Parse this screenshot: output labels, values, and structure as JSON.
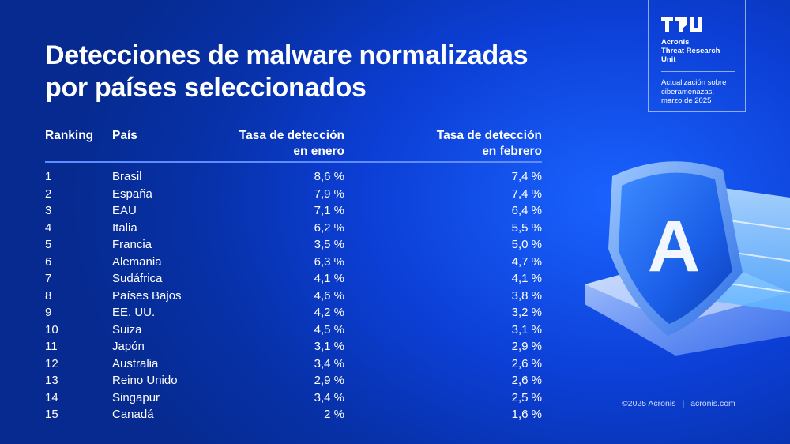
{
  "title_line1": "Detecciones de malware normalizadas",
  "title_line2": "por países seleccionados",
  "table": {
    "headers": {
      "rank": "Ranking",
      "country": "País",
      "jan_line1": "Tasa de detección",
      "jan_line2": "en enero",
      "feb_line1": "Tasa de detección",
      "feb_line2": "en febrero"
    },
    "rows": [
      {
        "rank": "1",
        "country": "Brasil",
        "jan": "8,6 %",
        "feb": "7,4 %"
      },
      {
        "rank": "2",
        "country": "España",
        "jan": "7,9 %",
        "feb": "7,4 %"
      },
      {
        "rank": "3",
        "country": "EAU",
        "jan": "7,1 %",
        "feb": "6,4 %"
      },
      {
        "rank": "4",
        "country": "Italia",
        "jan": "6,2 %",
        "feb": "5,5 %"
      },
      {
        "rank": "5",
        "country": "Francia",
        "jan": "3,5 %",
        "feb": "5,0 %"
      },
      {
        "rank": "6",
        "country": "Alemania",
        "jan": "6,3 %",
        "feb": "4,7 %"
      },
      {
        "rank": "7",
        "country": "Sudáfrica",
        "jan": "4,1 %",
        "feb": "4,1 %"
      },
      {
        "rank": "8",
        "country": "Países Bajos",
        "jan": "4,6 %",
        "feb": "3,8 %"
      },
      {
        "rank": "9",
        "country": "EE. UU.",
        "jan": "4,2 %",
        "feb": "3,2 %"
      },
      {
        "rank": "10",
        "country": "Suiza",
        "jan": "4,5 %",
        "feb": "3,1 %"
      },
      {
        "rank": "11",
        "country": "Japón",
        "jan": "3,1 %",
        "feb": "2,9 %"
      },
      {
        "rank": "12",
        "country": "Australia",
        "jan": "3,4 %",
        "feb": "2,6 %"
      },
      {
        "rank": "13",
        "country": "Reino Unido",
        "jan": "2,9 %",
        "feb": "2,6 %"
      },
      {
        "rank": "14",
        "country": "Singapur",
        "jan": "3,4 %",
        "feb": "2,5 %"
      },
      {
        "rank": "15",
        "country": "Canadá",
        "jan": "2 %",
        "feb": "1,6 %"
      }
    ]
  },
  "badge": {
    "unit_line1": "Acronis",
    "unit_line2": "Threat Research",
    "unit_line3": "Unit",
    "sub_line1": "Actualización sobre",
    "sub_line2": "ciberamenazas,",
    "sub_line3": "marzo de 2025"
  },
  "shield_letter": "A",
  "footer": {
    "copyright": "©2025 Acronis",
    "separator": "|",
    "site": "acronis.com"
  },
  "colors": {
    "background": "#0c3fd6",
    "accent_line": "#5f8cff",
    "shield": "#1d6cf0"
  },
  "icons": [
    "tru-logo-icon",
    "acronis-shield-icon"
  ]
}
